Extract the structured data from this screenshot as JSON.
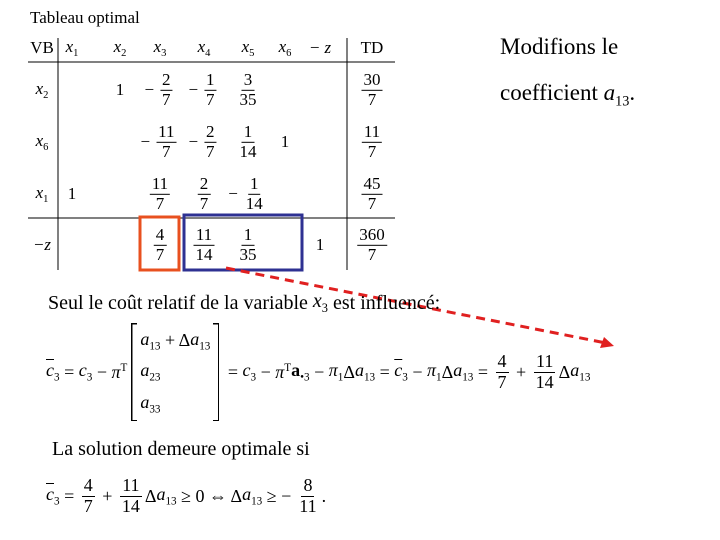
{
  "title": "Tableau optimal",
  "table": {
    "header": [
      {
        "t": "VB"
      },
      {
        "t": "x",
        "it": true,
        "sub": "1"
      },
      {
        "t": "x",
        "it": true,
        "sub": "2"
      },
      {
        "t": "x",
        "it": true,
        "sub": "3"
      },
      {
        "t": "x",
        "it": true,
        "sub": "4"
      },
      {
        "t": "x",
        "it": true,
        "sub": "5"
      },
      {
        "t": "x",
        "it": true,
        "sub": "6"
      },
      {
        "t": "− z",
        "it": true
      },
      {
        "t": "TD"
      }
    ],
    "rows": [
      [
        {
          "t": "x",
          "it": true,
          "sub": "2"
        },
        null,
        {
          "t": "1"
        },
        {
          "sign": "−",
          "num": "2",
          "den": "7"
        },
        {
          "sign": "−",
          "num": "1",
          "den": "7"
        },
        {
          "num": "3",
          "den": "35"
        },
        null,
        null,
        {
          "num": "30",
          "den": "7"
        }
      ],
      [
        {
          "t": "x",
          "it": true,
          "sub": "6"
        },
        null,
        null,
        {
          "sign": "−",
          "num": "11",
          "den": "7"
        },
        {
          "sign": "−",
          "num": "2",
          "den": "7"
        },
        {
          "num": "1",
          "den": "14"
        },
        {
          "t": "1"
        },
        null,
        {
          "num": "11",
          "den": "7"
        }
      ],
      [
        {
          "t": "x",
          "it": true,
          "sub": "1"
        },
        {
          "t": "1"
        },
        null,
        {
          "num": "11",
          "den": "7"
        },
        {
          "num": "2",
          "den": "7"
        },
        {
          "sign": "−",
          "num": "1",
          "den": "14"
        },
        null,
        null,
        {
          "num": "45",
          "den": "7"
        }
      ],
      [
        {
          "t": "−z",
          "it": true
        },
        null,
        null,
        {
          "num": "4",
          "den": "7"
        },
        {
          "num": "11",
          "den": "14"
        },
        {
          "num": "1",
          "den": "35"
        },
        null,
        {
          "t": "1"
        },
        {
          "num": "360",
          "den": "7"
        }
      ]
    ]
  },
  "note": [
    [
      {
        "t": "Modifions le"
      }
    ],
    [
      {
        "t": "coefficient "
      },
      {
        "t": "a",
        "it": true,
        "sub": "13"
      },
      {
        "t": "."
      }
    ]
  ],
  "sentence": [
    {
      "t": "Seul le coût relatif de la variable "
    },
    {
      "t": "x",
      "it": true,
      "sub": "3"
    },
    {
      "t": " est influencé:"
    }
  ],
  "equation1": [
    {
      "t": "c",
      "it": true,
      "bar": true,
      "sub": "3"
    },
    {
      "t": " = "
    },
    {
      "t": "c",
      "it": true,
      "sub": "3"
    },
    {
      "t": " − "
    },
    {
      "t": "π",
      "it": true,
      "sup": "T"
    },
    {
      "matrix": [
        [
          {
            "t": "a",
            "it": true,
            "sub": "13"
          },
          {
            "t": " + Δ"
          },
          {
            "t": "a",
            "it": true,
            "sub": "13"
          }
        ],
        [
          {
            "t": "a",
            "it": true,
            "sub": "23"
          }
        ],
        [
          {
            "t": "a",
            "it": true,
            "sub": "33"
          }
        ]
      ]
    },
    {
      "t": " = "
    },
    {
      "t": "c",
      "it": true,
      "sub": "3"
    },
    {
      "t": " − "
    },
    {
      "t": "π",
      "it": true,
      "sup": "T"
    },
    {
      "t": "a",
      "b": true,
      "sub": "•3"
    },
    {
      "t": " − "
    },
    {
      "t": "π",
      "it": true,
      "sub": "1"
    },
    {
      "t": "Δ"
    },
    {
      "t": "a",
      "it": true,
      "sub": "13"
    },
    {
      "t": " = "
    },
    {
      "t": "c",
      "it": true,
      "bar": true,
      "sub": "3"
    },
    {
      "t": " − "
    },
    {
      "t": "π",
      "it": true,
      "sub": "1"
    },
    {
      "t": "Δ"
    },
    {
      "t": "a",
      "it": true,
      "sub": "13"
    },
    {
      "t": " = "
    },
    {
      "num": "4",
      "den": "7"
    },
    {
      "t": " + "
    },
    {
      "num": "11",
      "den": "14"
    },
    {
      "t": "Δ"
    },
    {
      "t": "a",
      "it": true,
      "sub": "13"
    }
  ],
  "condition": "La solution demeure optimale si",
  "equation2": [
    {
      "t": "c",
      "it": true,
      "bar": true,
      "sub": "3"
    },
    {
      "t": " = "
    },
    {
      "num": "4",
      "den": "7"
    },
    {
      "t": " + "
    },
    {
      "num": "11",
      "den": "14"
    },
    {
      "t": "Δ"
    },
    {
      "t": "a",
      "it": true,
      "sub": "13"
    },
    {
      "t": " ≥ 0 ⇔ Δ"
    },
    {
      "t": "a",
      "it": true,
      "sub": "13"
    },
    {
      "t": " ≥ "
    },
    {
      "sign": "−",
      "num": "8",
      "den": "11"
    },
    {
      "t": "."
    }
  ]
}
